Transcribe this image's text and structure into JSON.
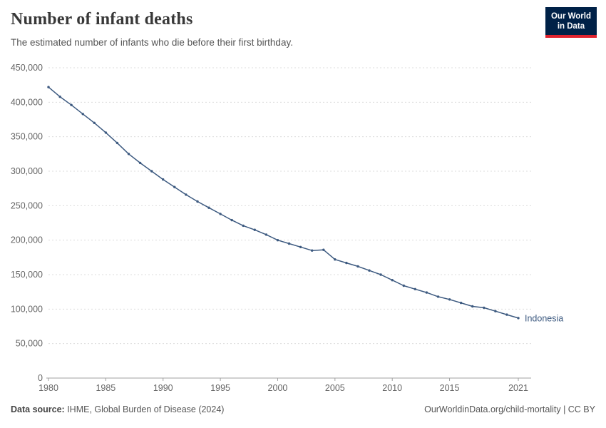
{
  "header": {
    "title": "Number of infant deaths",
    "subtitle": "The estimated number of infants who die before their first birthday."
  },
  "logo": {
    "line1": "Our World",
    "line2": "in Data",
    "bg_color": "#002147",
    "accent_color": "#e0232e"
  },
  "chart_data": {
    "type": "line",
    "title": "Number of infant deaths",
    "subtitle": "The estimated number of infants who die before their first birthday.",
    "grid": "horizontal-dashed",
    "legend_position": "end-of-line-label",
    "ylim": [
      0,
      450000
    ],
    "yticks": [
      0,
      50000,
      100000,
      150000,
      200000,
      250000,
      300000,
      350000,
      400000,
      450000
    ],
    "xticks": [
      1980,
      1985,
      1990,
      1995,
      2000,
      2005,
      2010,
      2015,
      2021
    ],
    "axis_color": "#a0a0a0",
    "gridline_color": "#dcdcdc",
    "tick_label_color": "#666666",
    "series": [
      {
        "name": "Indonesia",
        "color": "#3d5a80",
        "x": [
          1980,
          1981,
          1982,
          1983,
          1984,
          1985,
          1986,
          1987,
          1988,
          1989,
          1990,
          1991,
          1992,
          1993,
          1994,
          1995,
          1996,
          1997,
          1998,
          1999,
          2000,
          2001,
          2002,
          2003,
          2004,
          2005,
          2006,
          2007,
          2008,
          2009,
          2010,
          2011,
          2012,
          2013,
          2014,
          2015,
          2016,
          2017,
          2018,
          2019,
          2020,
          2021
        ],
        "values": [
          422000,
          408000,
          396000,
          383000,
          370000,
          356000,
          341000,
          325000,
          312000,
          300000,
          288000,
          277000,
          266000,
          256000,
          247000,
          238000,
          229000,
          221000,
          215000,
          208000,
          200000,
          195000,
          190000,
          185000,
          186000,
          172000,
          167000,
          162000,
          156000,
          150000,
          142000,
          134000,
          129000,
          124000,
          118000,
          114000,
          109000,
          104000,
          102000,
          97000,
          92000,
          87000
        ]
      }
    ]
  },
  "footer": {
    "source_label": "Data source:",
    "source_value": " IHME, Global Burden of Disease (2024)",
    "credit": "OurWorldinData.org/child-mortality | CC BY"
  }
}
